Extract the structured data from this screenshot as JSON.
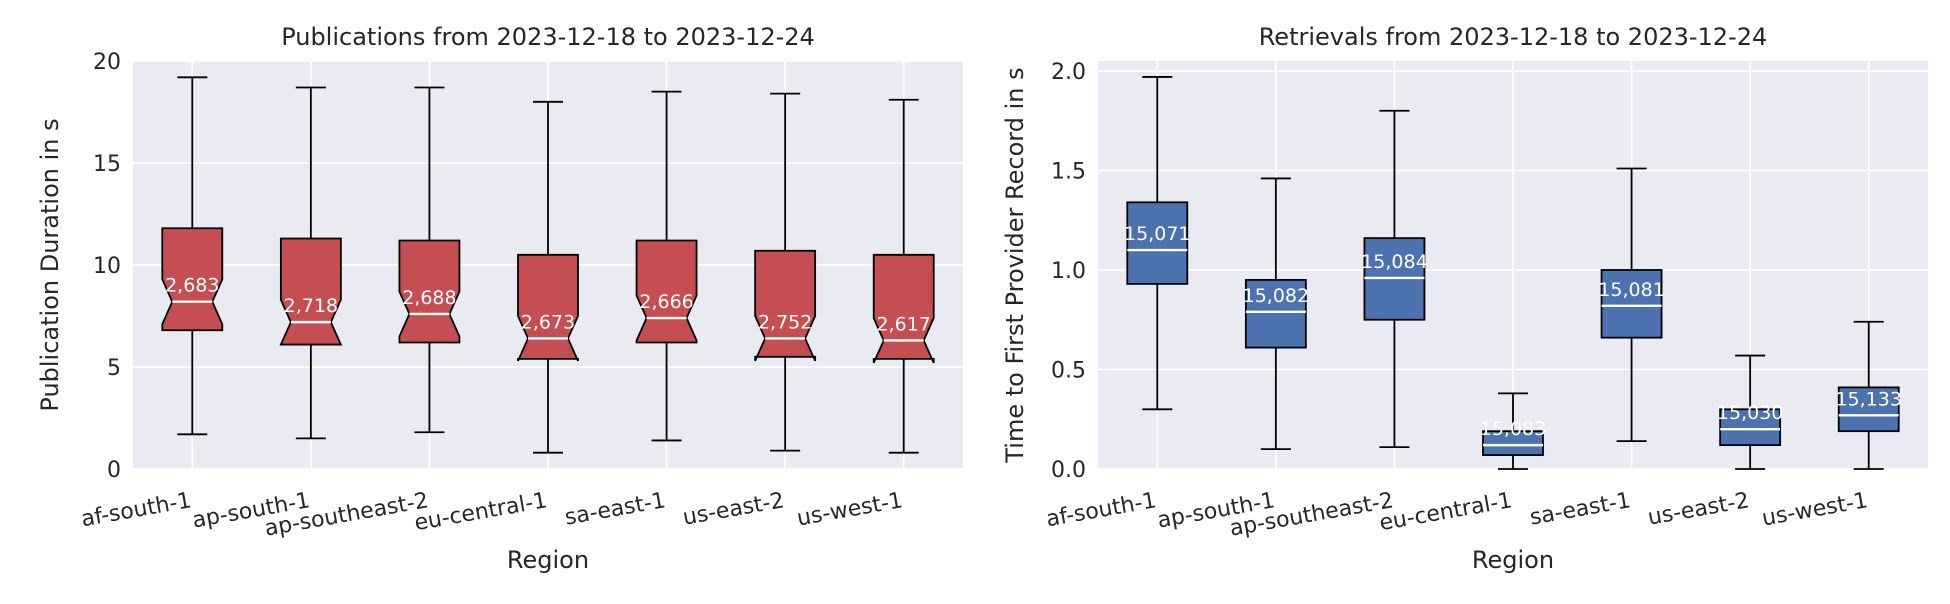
{
  "chart_data": [
    {
      "type": "box",
      "title": "Publications from 2023-12-18 to 2023-12-24",
      "xlabel": "Region",
      "ylabel": "Publication Duration in s",
      "ylim": [
        0,
        20
      ],
      "yticks": [
        0,
        5,
        10,
        15,
        20
      ],
      "notched": true,
      "grid": true,
      "color": "#c44e52",
      "categories": [
        "af-south-1",
        "ap-south-1",
        "ap-southeast-2",
        "eu-central-1",
        "sa-east-1",
        "us-east-2",
        "us-west-1"
      ],
      "boxes": [
        {
          "whisker_low": 1.7,
          "q1": 6.8,
          "median": 8.2,
          "q3": 11.8,
          "whisker_high": 19.2,
          "count_label": "2,683"
        },
        {
          "whisker_low": 1.5,
          "q1": 6.1,
          "median": 7.2,
          "q3": 11.3,
          "whisker_high": 18.7,
          "count_label": "2,718"
        },
        {
          "whisker_low": 1.8,
          "q1": 6.2,
          "median": 7.6,
          "q3": 11.2,
          "whisker_high": 18.7,
          "count_label": "2,688"
        },
        {
          "whisker_low": 0.8,
          "q1": 5.4,
          "median": 6.4,
          "q3": 10.5,
          "whisker_high": 18.0,
          "count_label": "2,673"
        },
        {
          "whisker_low": 1.4,
          "q1": 6.2,
          "median": 7.4,
          "q3": 11.2,
          "whisker_high": 18.5,
          "count_label": "2,666"
        },
        {
          "whisker_low": 0.9,
          "q1": 5.5,
          "median": 6.4,
          "q3": 10.7,
          "whisker_high": 18.4,
          "count_label": "2,752"
        },
        {
          "whisker_low": 0.8,
          "q1": 5.4,
          "median": 6.3,
          "q3": 10.5,
          "whisker_high": 18.1,
          "count_label": "2,617"
        }
      ]
    },
    {
      "type": "box",
      "title": "Retrievals from 2023-12-18 to 2023-12-24",
      "xlabel": "Region",
      "ylabel": "Time to First Provider Record in s",
      "ylim": [
        0,
        2.05
      ],
      "yticks": [
        0.0,
        0.5,
        1.0,
        1.5,
        2.0
      ],
      "ytick_labels": [
        "0.0",
        "0.5",
        "1.0",
        "1.5",
        "2.0"
      ],
      "notched": false,
      "grid": true,
      "color": "#4c72b0",
      "categories": [
        "af-south-1",
        "ap-south-1",
        "ap-southeast-2",
        "eu-central-1",
        "sa-east-1",
        "us-east-2",
        "us-west-1"
      ],
      "boxes": [
        {
          "whisker_low": 0.3,
          "q1": 0.93,
          "median": 1.1,
          "q3": 1.34,
          "whisker_high": 1.97,
          "count_label": "15,071"
        },
        {
          "whisker_low": 0.1,
          "q1": 0.61,
          "median": 0.79,
          "q3": 0.95,
          "whisker_high": 1.46,
          "count_label": "15,082"
        },
        {
          "whisker_low": 0.11,
          "q1": 0.75,
          "median": 0.96,
          "q3": 1.16,
          "whisker_high": 1.8,
          "count_label": "15,084"
        },
        {
          "whisker_low": 0.0,
          "q1": 0.07,
          "median": 0.12,
          "q3": 0.19,
          "whisker_high": 0.38,
          "count_label": "15,083"
        },
        {
          "whisker_low": 0.14,
          "q1": 0.66,
          "median": 0.82,
          "q3": 1.0,
          "whisker_high": 1.51,
          "count_label": "15,081"
        },
        {
          "whisker_low": 0.0,
          "q1": 0.12,
          "median": 0.2,
          "q3": 0.3,
          "whisker_high": 0.57,
          "count_label": "15,030"
        },
        {
          "whisker_low": 0.0,
          "q1": 0.19,
          "median": 0.27,
          "q3": 0.41,
          "whisker_high": 0.74,
          "count_label": "15,133"
        }
      ]
    }
  ]
}
